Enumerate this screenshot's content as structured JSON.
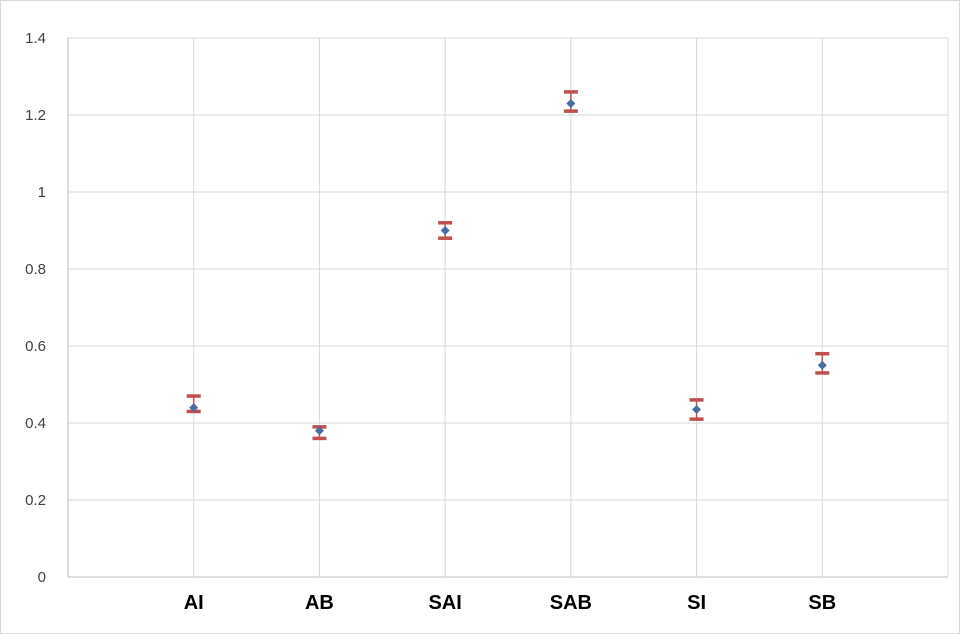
{
  "chart_data": {
    "type": "scatter",
    "title": "",
    "xlabel": "",
    "ylabel": "",
    "categories": [
      "AI",
      "AB",
      "SAI",
      "SAB",
      "SI",
      "SB"
    ],
    "ylim": [
      0,
      1.4
    ],
    "y_ticks": [
      "0",
      "0.2",
      "0.4",
      "0.6",
      "0.8",
      "1",
      "1.2",
      "1.4"
    ],
    "y_tick_values": [
      0,
      0.2,
      0.4,
      0.6,
      0.8,
      1.0,
      1.2,
      1.4
    ],
    "grid": true,
    "legend": "none",
    "series": [
      {
        "values": [
          0.44,
          0.38,
          0.9,
          1.23,
          0.435,
          0.55
        ],
        "error_high": [
          0.47,
          0.39,
          0.92,
          1.26,
          0.46,
          0.58
        ],
        "error_low": [
          0.43,
          0.36,
          0.88,
          1.21,
          0.41,
          0.53
        ],
        "marker_color": "#4a6da0",
        "error_color": "#c0504d"
      }
    ]
  }
}
